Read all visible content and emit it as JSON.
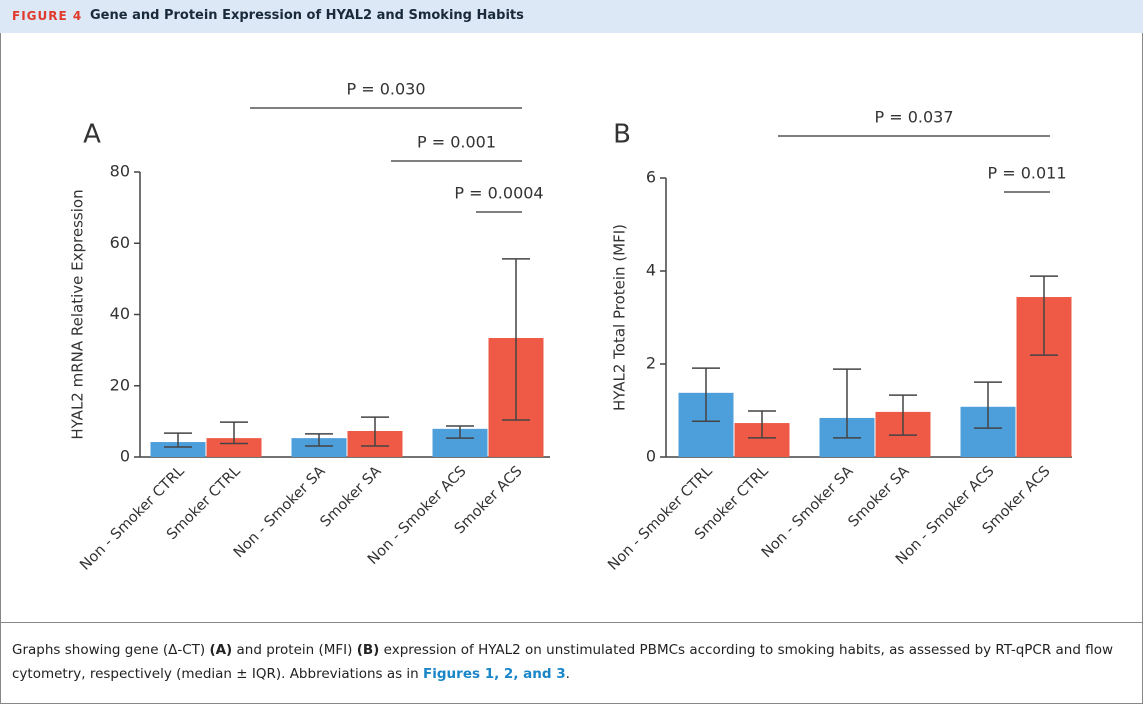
{
  "header": {
    "label": "FIGURE 4",
    "title": "Gene and Protein Expression of HYAL2 and Smoking Habits"
  },
  "chart_data": [
    {
      "type": "bar",
      "panel": "A",
      "y_label": "HYAL2 mRNA Relative Expression",
      "categories": [
        "Non - Smoker CTRL",
        "Smoker CTRL",
        "Non - Smoker SA",
        "Smoker SA",
        "Non - Smoker ACS",
        "Smoker ACS"
      ],
      "values": [
        4.2,
        5.3,
        5.3,
        7.3,
        7.9,
        33.4
      ],
      "q1": [
        2.8,
        3.8,
        3.1,
        3.1,
        5.3,
        10.4
      ],
      "q3": [
        6.7,
        9.8,
        6.5,
        11.2,
        8.7,
        55.6
      ],
      "colors": [
        "#4d9fdc",
        "#ee5a45",
        "#4d9fdc",
        "#ee5a45",
        "#4d9fdc",
        "#ee5a45"
      ],
      "ylim": [
        0,
        80
      ],
      "yticks": [
        0,
        20,
        40,
        60,
        80
      ],
      "grid": false,
      "annotations": [
        {
          "text": "P = 0.030",
          "from": 1,
          "to": 5
        },
        {
          "text": "P = 0.001",
          "from": 3,
          "to": 5
        },
        {
          "text": "P = 0.0004",
          "from": 4,
          "to": 5
        }
      ]
    },
    {
      "type": "bar",
      "panel": "B",
      "y_label": "HYAL2 Total Protein (MFI)",
      "categories": [
        "Non - Smoker CTRL",
        "Smoker CTRL",
        "Non - Smoker SA",
        "Smoker SA",
        "Non - Smoker ACS",
        "Smoker ACS"
      ],
      "values": [
        1.38,
        0.73,
        0.84,
        0.97,
        1.08,
        3.44
      ],
      "q1": [
        0.77,
        0.41,
        0.41,
        0.47,
        0.62,
        2.19
      ],
      "q3": [
        1.91,
        0.99,
        1.89,
        1.33,
        1.61,
        3.89
      ],
      "colors": [
        "#4d9fdc",
        "#ee5a45",
        "#4d9fdc",
        "#ee5a45",
        "#4d9fdc",
        "#ee5a45"
      ],
      "ylim": [
        0,
        6
      ],
      "yticks": [
        0,
        2,
        4,
        6
      ],
      "grid": false,
      "annotations": [
        {
          "text": "P = 0.037",
          "from": 1,
          "to": 5
        },
        {
          "text": "P = 0.011",
          "from": 4,
          "to": 5
        }
      ]
    }
  ],
  "caption": [
    "Graphs showing gene (Δ-CT) ",
    "(A)",
    " and protein (MFI) ",
    "(B)",
    " expression of HYAL2 on unstimulated PBMCs according to smoking habits, as assessed by RT-qPCR and flow cytometry, respectively (median ± IQR). Abbreviations as in ",
    "Figures 1, 2, and 3",
    "."
  ]
}
